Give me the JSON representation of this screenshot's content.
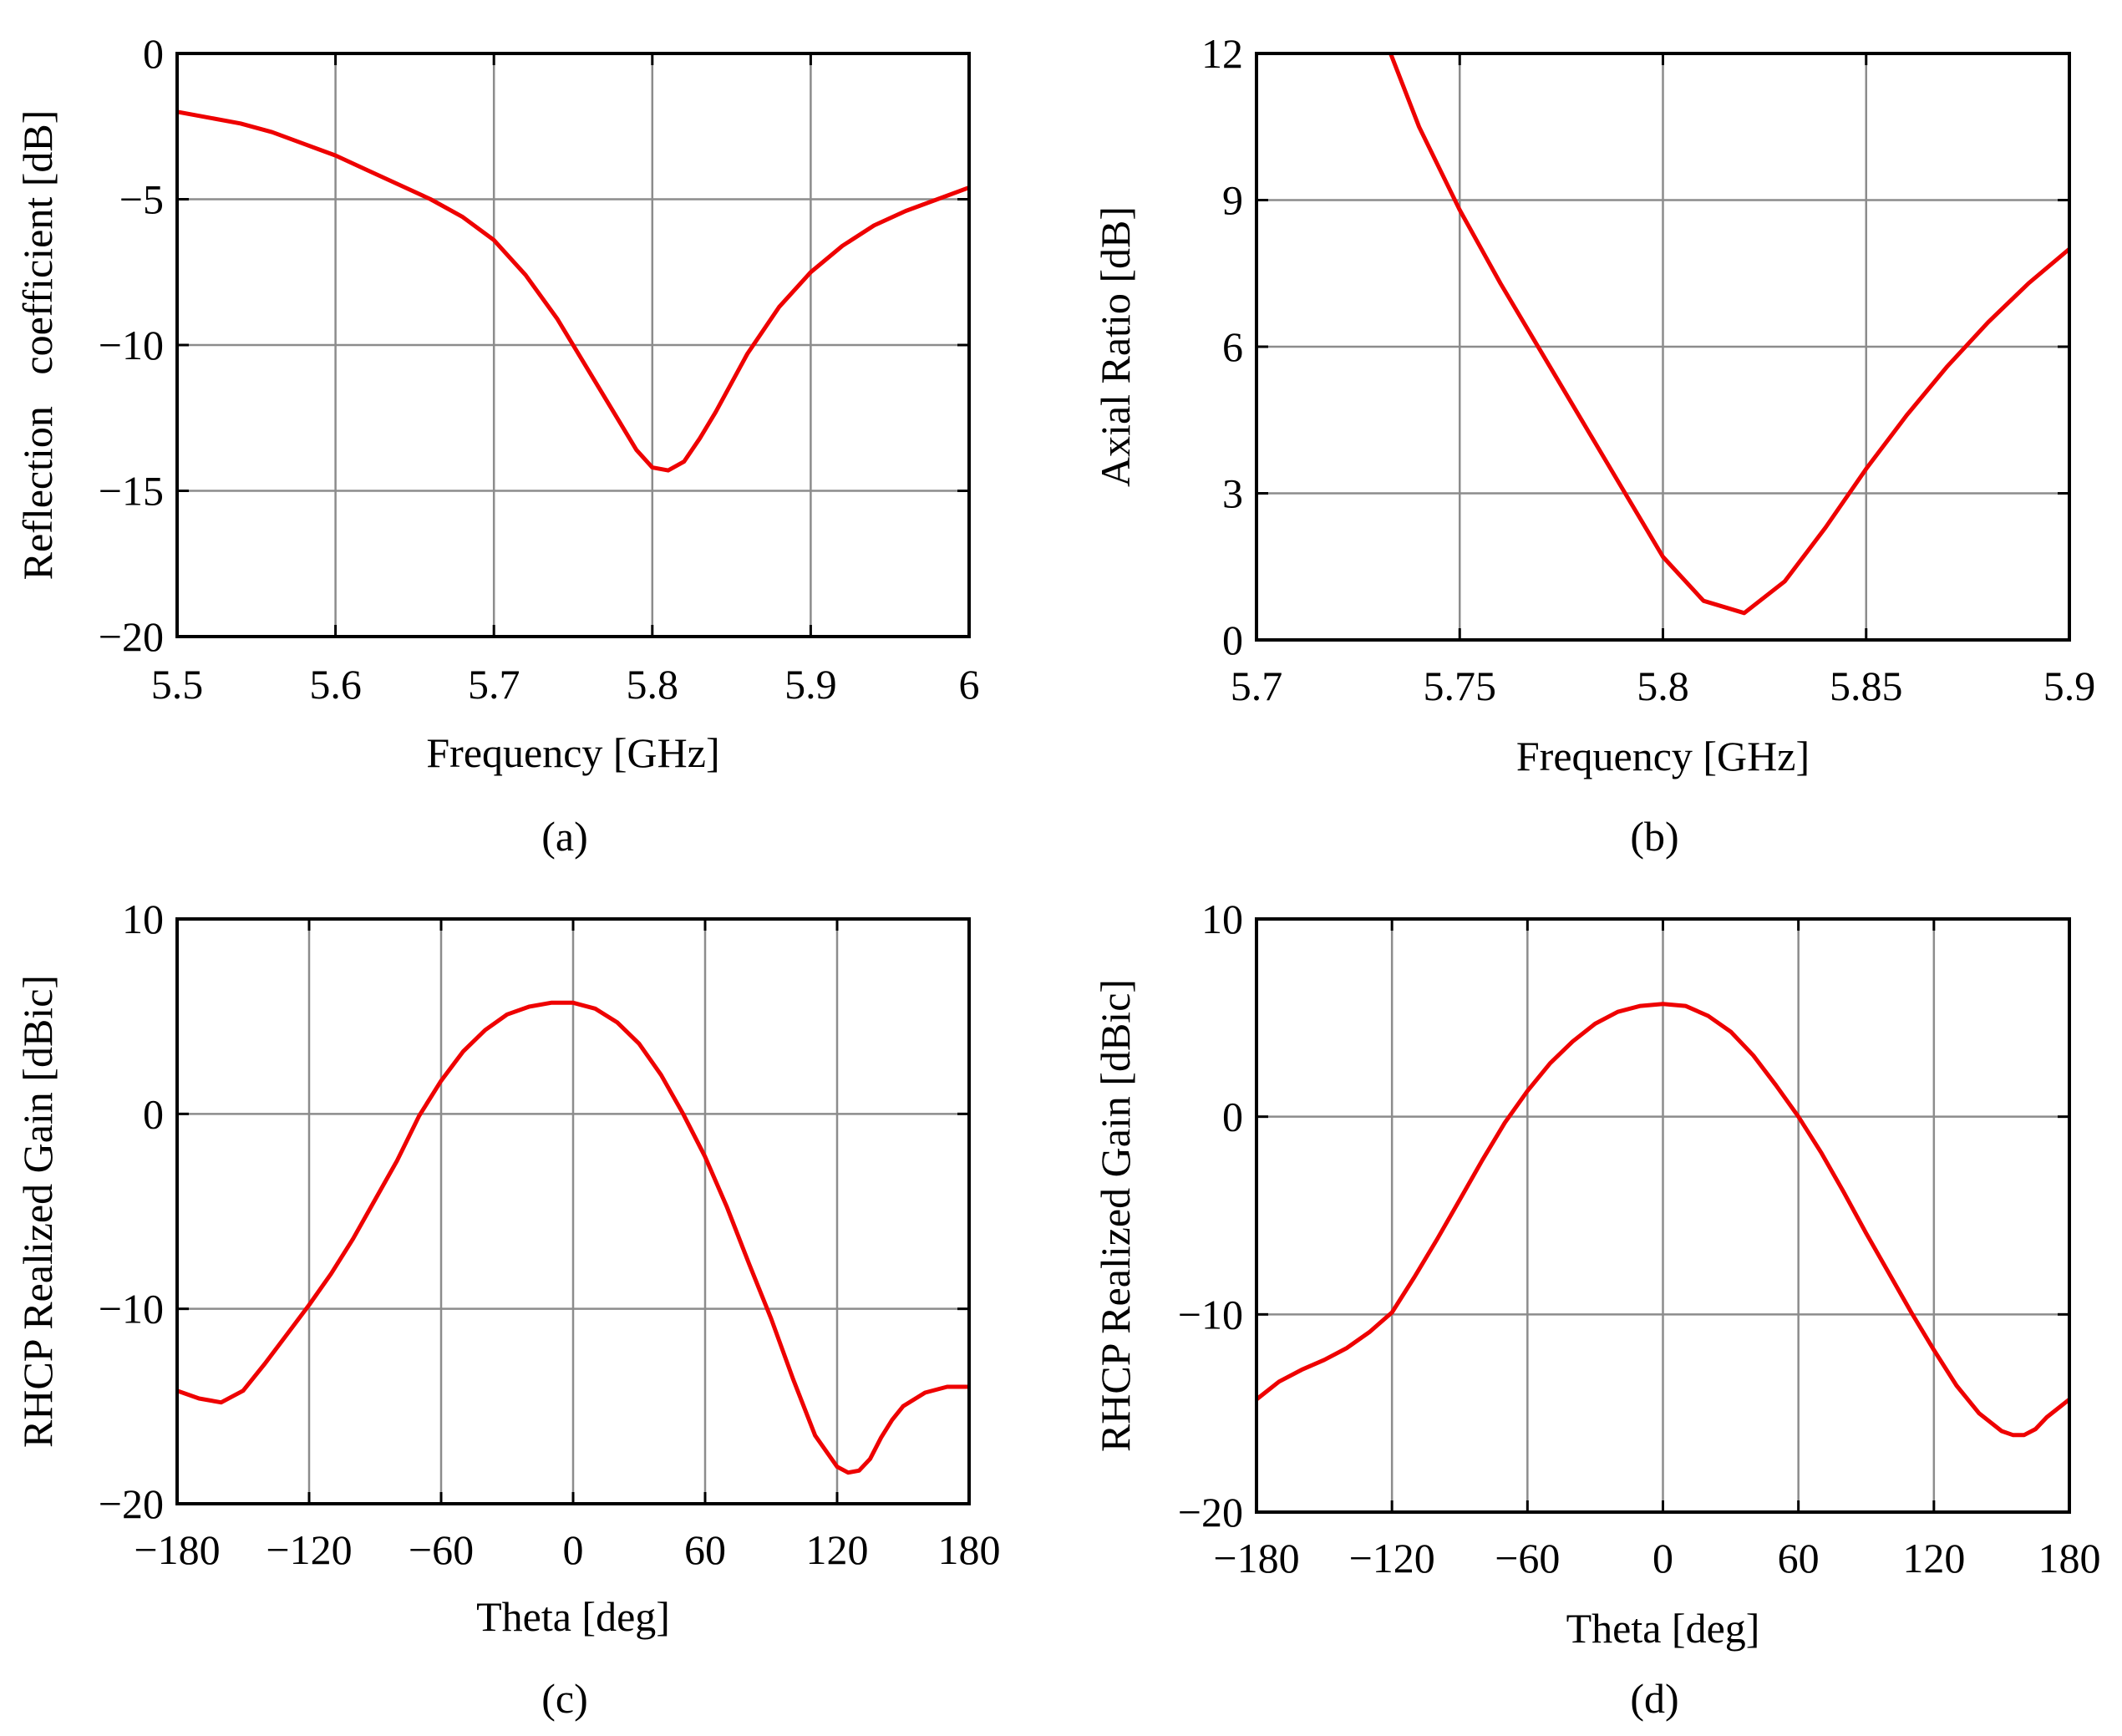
{
  "chart_data": [
    {
      "type": "line",
      "caption": "(a)",
      "xlabel": "Frequency [GHz]",
      "ylabel": "Reflection   coefficient [dB]",
      "xlim": [
        5.5,
        6
      ],
      "ylim": [
        -20,
        0
      ],
      "xticks": [
        5.5,
        5.6,
        5.7,
        5.8,
        5.9,
        6
      ],
      "xtick_labels": [
        "5.5",
        "5.6",
        "5.7",
        "5.8",
        "5.9",
        "6"
      ],
      "yticks": [
        -20,
        -15,
        -10,
        -5,
        0
      ],
      "ytick_labels": [
        "−20",
        "−15",
        "−10",
        "−5",
        "0"
      ],
      "grid": true,
      "series": [
        {
          "name": "Reflection coefficient",
          "color": "#ee0000",
          "x": [
            5.5,
            5.52,
            5.54,
            5.56,
            5.58,
            5.6,
            5.62,
            5.64,
            5.66,
            5.68,
            5.7,
            5.72,
            5.74,
            5.76,
            5.78,
            5.79,
            5.8,
            5.81,
            5.82,
            5.83,
            5.84,
            5.86,
            5.88,
            5.9,
            5.92,
            5.94,
            5.96,
            5.98,
            6.0
          ],
          "y": [
            -2.0,
            -2.2,
            -2.4,
            -2.7,
            -3.1,
            -3.5,
            -4.0,
            -4.5,
            -5.0,
            -5.6,
            -6.4,
            -7.6,
            -9.1,
            -10.9,
            -12.7,
            -13.6,
            -14.2,
            -14.3,
            -14.0,
            -13.2,
            -12.3,
            -10.3,
            -8.7,
            -7.5,
            -6.6,
            -5.9,
            -5.4,
            -5.0,
            -4.6
          ]
        }
      ]
    },
    {
      "type": "line",
      "caption": "(b)",
      "xlabel": "Frequency [GHz]",
      "ylabel": "Axial Ratio [dB]",
      "xlim": [
        5.7,
        5.9
      ],
      "ylim": [
        0,
        12
      ],
      "xticks": [
        5.7,
        5.75,
        5.8,
        5.85,
        5.9
      ],
      "xtick_labels": [
        "5.7",
        "5.75",
        "5.8",
        "5.85",
        "5.9"
      ],
      "yticks": [
        0,
        3,
        6,
        9,
        12
      ],
      "ytick_labels": [
        "0",
        "3",
        "6",
        "9",
        "12"
      ],
      "grid": true,
      "series": [
        {
          "name": "Axial ratio",
          "color": "#ee0000",
          "x": [
            5.733,
            5.74,
            5.75,
            5.76,
            5.77,
            5.78,
            5.79,
            5.8,
            5.81,
            5.82,
            5.83,
            5.84,
            5.85,
            5.86,
            5.87,
            5.88,
            5.89,
            5.9
          ],
          "y": [
            12.0,
            10.5,
            8.8,
            7.3,
            5.9,
            4.5,
            3.1,
            1.7,
            0.8,
            0.55,
            1.2,
            2.3,
            3.5,
            4.6,
            5.6,
            6.5,
            7.3,
            8.0
          ]
        }
      ]
    },
    {
      "type": "line",
      "caption": "(c)",
      "xlabel": "Theta [deg]",
      "ylabel": "RHCP Realized Gain [dBic]",
      "xlim": [
        -180,
        180
      ],
      "ylim": [
        -20,
        10
      ],
      "xticks": [
        -180,
        -120,
        -60,
        0,
        60,
        120,
        180
      ],
      "xtick_labels": [
        "−180",
        "−120",
        "−60",
        "0",
        "60",
        "120",
        "180"
      ],
      "yticks": [
        -20,
        -10,
        0,
        10
      ],
      "ytick_labels": [
        "−20",
        "−10",
        "0",
        "10"
      ],
      "grid": true,
      "series": [
        {
          "name": "RHCP realized gain",
          "color": "#ee0000",
          "x": [
            -180,
            -170,
            -160,
            -150,
            -140,
            -130,
            -120,
            -110,
            -100,
            -90,
            -80,
            -70,
            -60,
            -50,
            -40,
            -30,
            -20,
            -10,
            0,
            10,
            20,
            30,
            40,
            50,
            60,
            70,
            80,
            90,
            100,
            110,
            120,
            125,
            130,
            135,
            140,
            145,
            150,
            160,
            170,
            180
          ],
          "y": [
            -14.2,
            -14.6,
            -14.8,
            -14.2,
            -12.8,
            -11.3,
            -9.8,
            -8.2,
            -6.4,
            -4.4,
            -2.4,
            -0.1,
            1.7,
            3.2,
            4.3,
            5.1,
            5.5,
            5.7,
            5.7,
            5.4,
            4.7,
            3.6,
            2.0,
            0.0,
            -2.2,
            -4.8,
            -7.7,
            -10.5,
            -13.6,
            -16.5,
            -18.1,
            -18.4,
            -18.3,
            -17.7,
            -16.6,
            -15.7,
            -15.0,
            -14.3,
            -14.0,
            -14.0
          ]
        }
      ]
    },
    {
      "type": "line",
      "caption": "(d)",
      "xlabel": "Theta [deg]",
      "ylabel": "RHCP Realized Gain [dBic]",
      "xlim": [
        -180,
        180
      ],
      "ylim": [
        -20,
        10
      ],
      "xticks": [
        -180,
        -120,
        -60,
        0,
        60,
        120,
        180
      ],
      "xtick_labels": [
        "−180",
        "−120",
        "−60",
        "0",
        "60",
        "120",
        "180"
      ],
      "yticks": [
        -20,
        -10,
        0,
        10
      ],
      "ytick_labels": [
        "−20",
        "−10",
        "0",
        "10"
      ],
      "grid": true,
      "series": [
        {
          "name": "RHCP realized gain",
          "color": "#ee0000",
          "x": [
            -180,
            -170,
            -160,
            -150,
            -140,
            -130,
            -120,
            -110,
            -100,
            -90,
            -80,
            -70,
            -60,
            -50,
            -40,
            -30,
            -20,
            -10,
            0,
            10,
            20,
            30,
            40,
            50,
            60,
            70,
            80,
            90,
            100,
            110,
            120,
            130,
            140,
            150,
            155,
            160,
            165,
            170,
            180
          ],
          "y": [
            -14.3,
            -13.4,
            -12.8,
            -12.3,
            -11.7,
            -10.9,
            -9.9,
            -8.1,
            -6.2,
            -4.2,
            -2.2,
            -0.3,
            1.3,
            2.7,
            3.8,
            4.7,
            5.3,
            5.6,
            5.7,
            5.6,
            5.1,
            4.3,
            3.1,
            1.6,
            0.0,
            -1.8,
            -3.8,
            -5.9,
            -7.9,
            -9.9,
            -11.8,
            -13.6,
            -15.0,
            -15.9,
            -16.1,
            -16.1,
            -15.8,
            -15.2,
            -14.3
          ]
        }
      ]
    }
  ]
}
